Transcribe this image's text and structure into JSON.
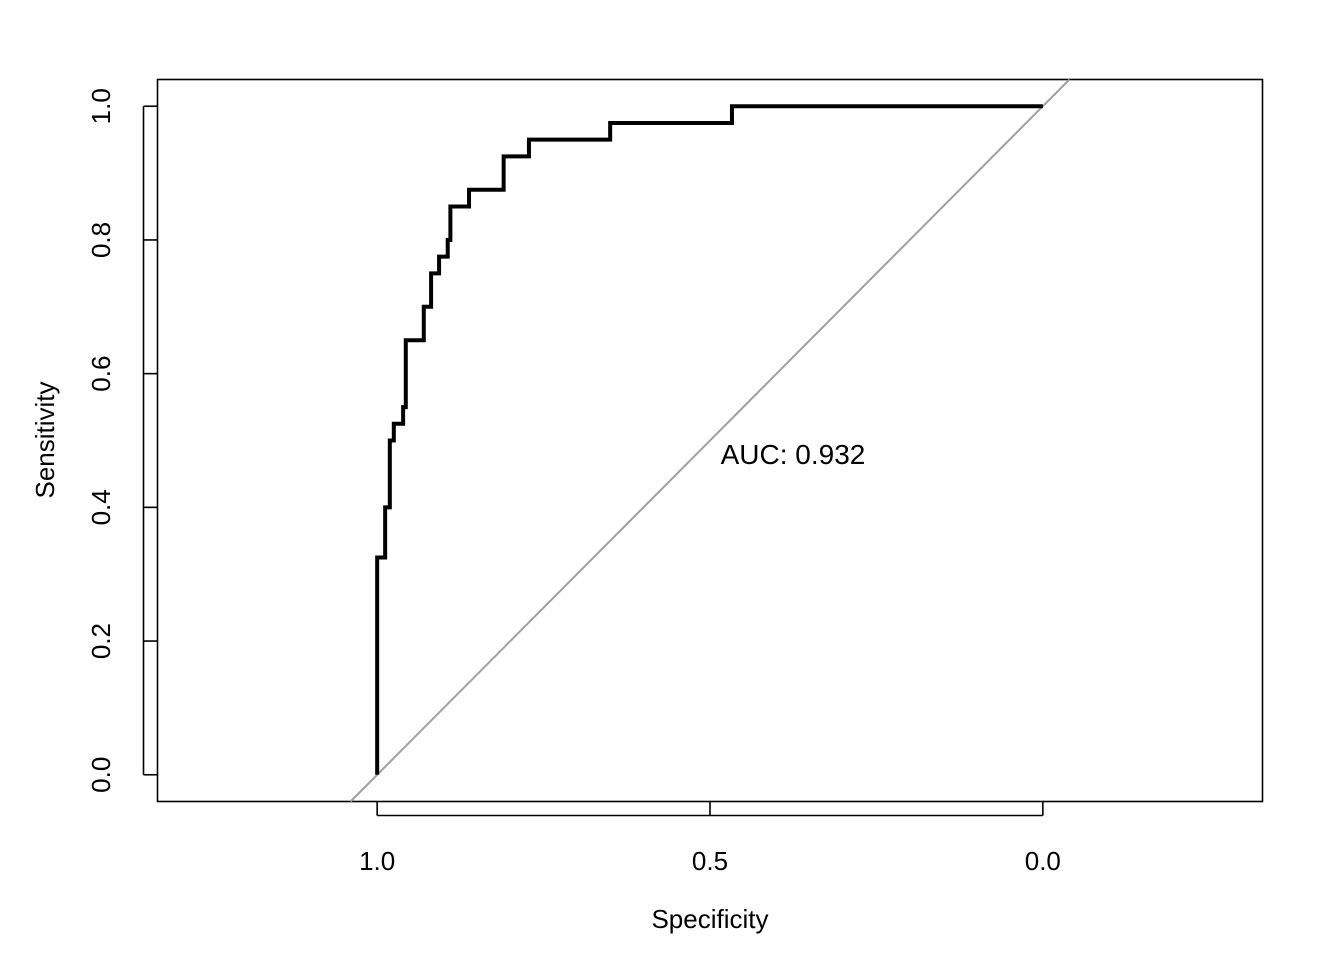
{
  "chart_data": {
    "type": "line",
    "xlabel": "Specificity",
    "ylabel": "Sensitivity",
    "x_reversed": true,
    "xlim": [
      1.33,
      -0.33
    ],
    "ylim": [
      -0.04,
      1.04
    ],
    "x_ticks": [
      {
        "value": 1.0,
        "label": "1.0"
      },
      {
        "value": 0.5,
        "label": "0.5"
      },
      {
        "value": 0.0,
        "label": "0.0"
      }
    ],
    "y_ticks": [
      {
        "value": 0.0,
        "label": "0.0"
      },
      {
        "value": 0.2,
        "label": "0.2"
      },
      {
        "value": 0.4,
        "label": "0.4"
      },
      {
        "value": 0.6,
        "label": "0.6"
      },
      {
        "value": 0.8,
        "label": "0.8"
      },
      {
        "value": 1.0,
        "label": "1.0"
      }
    ],
    "annotation": {
      "text": "AUC: 0.932",
      "x": 0.5,
      "y": 0.48
    },
    "reference_line": {
      "slope": 1,
      "color": "#a0a0a0"
    },
    "series": [
      {
        "color": "#000000",
        "points": [
          [
            1.0,
            0.0
          ],
          [
            1.0,
            0.325
          ],
          [
            0.988,
            0.325
          ],
          [
            0.988,
            0.4
          ],
          [
            0.981,
            0.4
          ],
          [
            0.981,
            0.5
          ],
          [
            0.975,
            0.5
          ],
          [
            0.975,
            0.525
          ],
          [
            0.961,
            0.525
          ],
          [
            0.961,
            0.55
          ],
          [
            0.957,
            0.55
          ],
          [
            0.957,
            0.65
          ],
          [
            0.93,
            0.65
          ],
          [
            0.93,
            0.7
          ],
          [
            0.919,
            0.7
          ],
          [
            0.919,
            0.75
          ],
          [
            0.907,
            0.75
          ],
          [
            0.907,
            0.775
          ],
          [
            0.894,
            0.775
          ],
          [
            0.894,
            0.8
          ],
          [
            0.89,
            0.8
          ],
          [
            0.89,
            0.85
          ],
          [
            0.862,
            0.85
          ],
          [
            0.862,
            0.875
          ],
          [
            0.81,
            0.875
          ],
          [
            0.81,
            0.925
          ],
          [
            0.772,
            0.925
          ],
          [
            0.772,
            0.95
          ],
          [
            0.65,
            0.95
          ],
          [
            0.65,
            0.975
          ],
          [
            0.467,
            0.975
          ],
          [
            0.467,
            1.0
          ],
          [
            0.0,
            1.0
          ]
        ]
      }
    ],
    "grid": false,
    "legend": "none"
  }
}
